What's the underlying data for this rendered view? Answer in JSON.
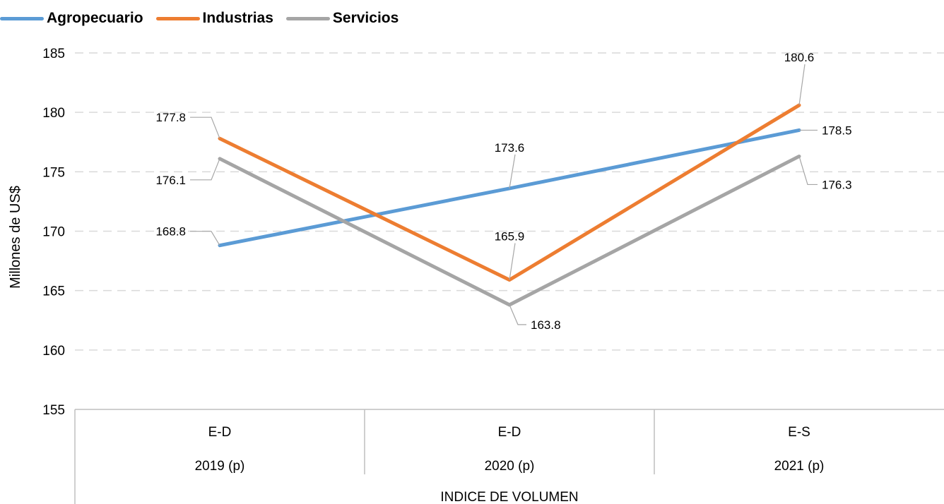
{
  "chart_data": {
    "type": "line",
    "ylabel": "Millones de US$",
    "ylim": [
      155,
      185
    ],
    "yticks": [
      "155",
      "160",
      "165",
      "170",
      "175",
      "180",
      "185"
    ],
    "grid": true,
    "legend_position": "top-left",
    "categories": [
      {
        "sub": "E-D",
        "main": "2019 (p)"
      },
      {
        "sub": "E-D",
        "main": "2020 (p)"
      },
      {
        "sub": "E-S",
        "main": "2021 (p)"
      }
    ],
    "group_label": "INDICE DE VOLUMEN",
    "series": [
      {
        "name": "Agropecuario",
        "color": "#5B9BD5",
        "values": [
          168.8,
          173.6,
          178.5
        ],
        "labels": [
          "168.8",
          "173.6",
          "178.5"
        ]
      },
      {
        "name": "Industrias",
        "color": "#ED7D31",
        "values": [
          177.8,
          165.9,
          180.6
        ],
        "labels": [
          "177.8",
          "165.9",
          "180.6"
        ]
      },
      {
        "name": "Servicios",
        "color": "#A5A5A5",
        "values": [
          176.1,
          163.8,
          176.3
        ],
        "labels": [
          "176.1",
          "163.8",
          "176.3"
        ]
      }
    ]
  }
}
